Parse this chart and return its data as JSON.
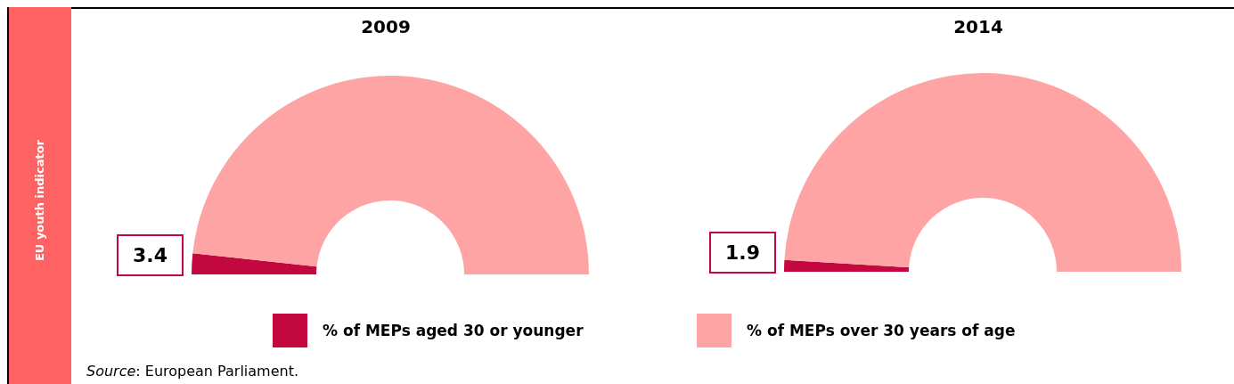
{
  "chart_data": [
    {
      "type": "donut",
      "title": "2009",
      "categories": [
        "% of MEPs aged 30 or younger",
        "% of MEPs over 30 years of age"
      ],
      "values": [
        3.4,
        96.6
      ],
      "colors": [
        "#c3073f",
        "#ffa4a4"
      ],
      "value_labels": [
        "3.4",
        null
      ],
      "legend": "bottom",
      "annotations": [
        "EU youth indicator",
        "Source: European Parliament."
      ]
    },
    {
      "type": "donut",
      "title": "2014",
      "categories": [
        null,
        null
      ],
      "values": [
        1.9,
        98.1
      ],
      "colors": [
        "#c3073f",
        "#ffa4a4"
      ],
      "value_labels": [
        "1.9",
        null
      ]
    }
  ]
}
